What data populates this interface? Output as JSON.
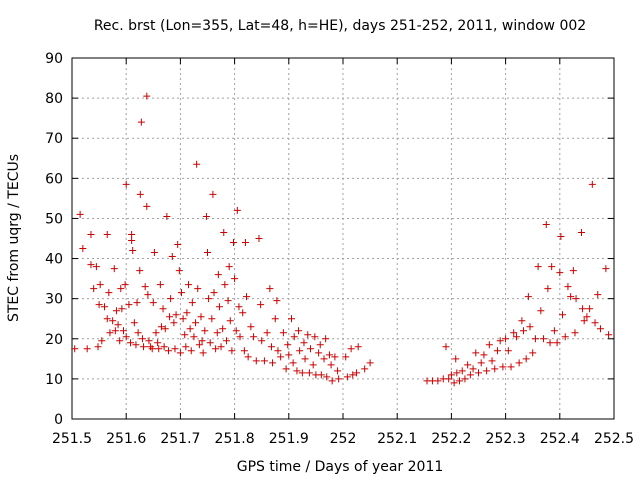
{
  "chart_data": {
    "type": "scatter",
    "title": "Rec. brst (Lon=355, Lat=48, h=HE), days 251-252, 2011, window 002",
    "xlabel": "GPS time / Days of year 2011",
    "ylabel": "STEC from uqrg / TECUs",
    "xlim": [
      251.5,
      252.5
    ],
    "ylim": [
      0,
      90
    ],
    "grid": true,
    "marker": "plus",
    "color": "#cc0000",
    "x_ticks": [
      251.5,
      251.6,
      251.7,
      251.8,
      251.9,
      252,
      252.1,
      252.2,
      252.3,
      252.4,
      252.5
    ],
    "x_tick_labels": [
      "251.5",
      "251.6",
      "251.7",
      "251.8",
      "251.9",
      "252",
      "252.1",
      "252.2",
      "252.3",
      "252.4",
      "252.5"
    ],
    "y_ticks": [
      0,
      10,
      20,
      30,
      40,
      50,
      60,
      70,
      80,
      90
    ],
    "y_tick_labels": [
      "0",
      "10",
      "20",
      "30",
      "40",
      "50",
      "60",
      "70",
      "80",
      "90"
    ],
    "series": [
      {
        "name": "STEC",
        "points": [
          [
            251.505,
            17.5
          ],
          [
            251.515,
            51.0
          ],
          [
            251.52,
            42.5
          ],
          [
            251.528,
            17.5
          ],
          [
            251.535,
            38.5
          ],
          [
            251.535,
            46.0
          ],
          [
            251.54,
            32.5
          ],
          [
            251.545,
            38.0
          ],
          [
            251.548,
            18.0
          ],
          [
            251.55,
            28.5
          ],
          [
            251.552,
            33.5
          ],
          [
            251.555,
            19.5
          ],
          [
            251.56,
            28.0
          ],
          [
            251.565,
            25.0
          ],
          [
            251.565,
            46.0
          ],
          [
            251.568,
            31.5
          ],
          [
            251.57,
            21.5
          ],
          [
            251.575,
            24.5
          ],
          [
            251.578,
            37.5
          ],
          [
            251.58,
            22.0
          ],
          [
            251.582,
            27.0
          ],
          [
            251.585,
            23.5
          ],
          [
            251.588,
            19.5
          ],
          [
            251.59,
            32.5
          ],
          [
            251.592,
            27.5
          ],
          [
            251.595,
            22.0
          ],
          [
            251.598,
            33.5
          ],
          [
            251.6,
            58.5
          ],
          [
            251.6,
            20.5
          ],
          [
            251.605,
            28.5
          ],
          [
            251.608,
            19.0
          ],
          [
            251.61,
            46.0
          ],
          [
            251.61,
            44.5
          ],
          [
            251.612,
            42.0
          ],
          [
            251.615,
            24.0
          ],
          [
            251.618,
            18.5
          ],
          [
            251.62,
            29.0
          ],
          [
            251.622,
            21.5
          ],
          [
            251.625,
            37.0
          ],
          [
            251.626,
            56.0
          ],
          [
            251.628,
            74.0
          ],
          [
            251.63,
            20.0
          ],
          [
            251.632,
            18.0
          ],
          [
            251.635,
            33.0
          ],
          [
            251.638,
            80.5
          ],
          [
            251.638,
            53.0
          ],
          [
            251.64,
            31.0
          ],
          [
            251.642,
            19.5
          ],
          [
            251.645,
            18.0
          ],
          [
            251.648,
            17.5
          ],
          [
            251.65,
            29.0
          ],
          [
            251.652,
            41.5
          ],
          [
            251.655,
            21.5
          ],
          [
            251.658,
            19.0
          ],
          [
            251.66,
            17.5
          ],
          [
            251.663,
            33.5
          ],
          [
            251.665,
            23.0
          ],
          [
            251.668,
            27.5
          ],
          [
            251.67,
            18.0
          ],
          [
            251.672,
            22.5
          ],
          [
            251.675,
            50.5
          ],
          [
            251.678,
            17.0
          ],
          [
            251.68,
            25.5
          ],
          [
            251.682,
            30.0
          ],
          [
            251.685,
            40.5
          ],
          [
            251.688,
            24.0
          ],
          [
            251.69,
            17.5
          ],
          [
            251.692,
            26.0
          ],
          [
            251.695,
            43.5
          ],
          [
            251.698,
            37.0
          ],
          [
            251.7,
            16.5
          ],
          [
            251.702,
            31.5
          ],
          [
            251.705,
            25.0
          ],
          [
            251.708,
            21.0
          ],
          [
            251.71,
            18.0
          ],
          [
            251.712,
            26.5
          ],
          [
            251.715,
            33.5
          ],
          [
            251.718,
            22.5
          ],
          [
            251.72,
            17.0
          ],
          [
            251.722,
            29.0
          ],
          [
            251.725,
            20.5
          ],
          [
            251.728,
            24.0
          ],
          [
            251.73,
            63.5
          ],
          [
            251.732,
            32.5
          ],
          [
            251.735,
            18.5
          ],
          [
            251.738,
            25.5
          ],
          [
            251.74,
            19.5
          ],
          [
            251.742,
            16.5
          ],
          [
            251.745,
            22.0
          ],
          [
            251.748,
            50.5
          ],
          [
            251.75,
            41.5
          ],
          [
            251.752,
            30.0
          ],
          [
            251.755,
            19.0
          ],
          [
            251.758,
            25.0
          ],
          [
            251.76,
            56.0
          ],
          [
            251.762,
            31.5
          ],
          [
            251.765,
            17.5
          ],
          [
            251.768,
            21.5
          ],
          [
            251.77,
            36.0
          ],
          [
            251.772,
            28.0
          ],
          [
            251.775,
            18.0
          ],
          [
            251.778,
            22.5
          ],
          [
            251.78,
            46.5
          ],
          [
            251.782,
            33.5
          ],
          [
            251.785,
            19.5
          ],
          [
            251.788,
            29.5
          ],
          [
            251.79,
            38.0
          ],
          [
            251.792,
            24.5
          ],
          [
            251.795,
            17.0
          ],
          [
            251.798,
            44.0
          ],
          [
            251.8,
            35.0
          ],
          [
            251.803,
            22.0
          ],
          [
            251.805,
            52.0
          ],
          [
            251.808,
            28.0
          ],
          [
            251.81,
            20.5
          ],
          [
            251.815,
            26.5
          ],
          [
            251.818,
            17.0
          ],
          [
            251.82,
            44.0
          ],
          [
            251.822,
            30.5
          ],
          [
            251.825,
            15.5
          ],
          [
            251.83,
            23.0
          ],
          [
            251.835,
            20.5
          ],
          [
            251.84,
            14.5
          ],
          [
            251.845,
            45.0
          ],
          [
            251.848,
            28.5
          ],
          [
            251.85,
            19.5
          ],
          [
            251.855,
            14.5
          ],
          [
            251.86,
            21.5
          ],
          [
            251.865,
            32.5
          ],
          [
            251.868,
            18.0
          ],
          [
            251.87,
            14.0
          ],
          [
            251.875,
            25.0
          ],
          [
            251.878,
            29.5
          ],
          [
            251.88,
            17.0
          ],
          [
            251.885,
            15.5
          ],
          [
            251.89,
            21.5
          ],
          [
            251.895,
            12.5
          ],
          [
            251.898,
            18.5
          ],
          [
            251.9,
            16.0
          ],
          [
            251.905,
            25.0
          ],
          [
            251.908,
            14.0
          ],
          [
            251.91,
            20.5
          ],
          [
            251.915,
            12.0
          ],
          [
            251.918,
            22.0
          ],
          [
            251.92,
            17.0
          ],
          [
            251.925,
            11.5
          ],
          [
            251.928,
            19.0
          ],
          [
            251.93,
            15.0
          ],
          [
            251.935,
            21.0
          ],
          [
            251.938,
            11.5
          ],
          [
            251.94,
            17.5
          ],
          [
            251.945,
            13.5
          ],
          [
            251.948,
            20.5
          ],
          [
            251.95,
            11.0
          ],
          [
            251.955,
            16.5
          ],
          [
            251.958,
            18.5
          ],
          [
            251.96,
            11.0
          ],
          [
            251.965,
            15.0
          ],
          [
            251.968,
            20.0
          ],
          [
            251.97,
            10.5
          ],
          [
            251.975,
            16.0
          ],
          [
            251.978,
            13.5
          ],
          [
            251.98,
            9.5
          ],
          [
            251.985,
            15.5
          ],
          [
            251.99,
            12.0
          ],
          [
            251.992,
            10.0
          ],
          [
            252.005,
            15.5
          ],
          [
            252.008,
            10.5
          ],
          [
            252.015,
            17.5
          ],
          [
            252.018,
            11.0
          ],
          [
            252.025,
            11.5
          ],
          [
            252.028,
            18.0
          ],
          [
            252.04,
            12.5
          ],
          [
            252.05,
            14.0
          ],
          [
            252.155,
            9.5
          ],
          [
            252.165,
            9.5
          ],
          [
            252.175,
            9.5
          ],
          [
            252.185,
            10.0
          ],
          [
            252.19,
            18.0
          ],
          [
            252.195,
            10.0
          ],
          [
            252.2,
            11.0
          ],
          [
            252.205,
            9.0
          ],
          [
            252.208,
            15.0
          ],
          [
            252.21,
            11.5
          ],
          [
            252.215,
            9.5
          ],
          [
            252.22,
            12.0
          ],
          [
            252.225,
            10.0
          ],
          [
            252.23,
            13.5
          ],
          [
            252.235,
            11.0
          ],
          [
            252.24,
            12.5
          ],
          [
            252.245,
            16.5
          ],
          [
            252.25,
            11.5
          ],
          [
            252.255,
            14.0
          ],
          [
            252.26,
            16.0
          ],
          [
            252.265,
            12.0
          ],
          [
            252.27,
            18.5
          ],
          [
            252.275,
            14.5
          ],
          [
            252.28,
            12.5
          ],
          [
            252.285,
            17.0
          ],
          [
            252.29,
            19.5
          ],
          [
            252.295,
            13.0
          ],
          [
            252.3,
            20.0
          ],
          [
            252.305,
            17.0
          ],
          [
            252.31,
            13.0
          ],
          [
            252.315,
            21.5
          ],
          [
            252.32,
            20.5
          ],
          [
            252.325,
            14.0
          ],
          [
            252.33,
            24.5
          ],
          [
            252.333,
            22.0
          ],
          [
            252.338,
            15.0
          ],
          [
            252.342,
            30.5
          ],
          [
            252.345,
            23.0
          ],
          [
            252.35,
            16.5
          ],
          [
            252.355,
            20.0
          ],
          [
            252.36,
            38.0
          ],
          [
            252.365,
            27.0
          ],
          [
            252.37,
            20.0
          ],
          [
            252.375,
            48.5
          ],
          [
            252.378,
            32.5
          ],
          [
            252.382,
            19.0
          ],
          [
            252.385,
            38.0
          ],
          [
            252.39,
            22.0
          ],
          [
            252.395,
            19.0
          ],
          [
            252.4,
            36.5
          ],
          [
            252.402,
            45.5
          ],
          [
            252.405,
            26.0
          ],
          [
            252.41,
            20.5
          ],
          [
            252.415,
            33.0
          ],
          [
            252.42,
            30.5
          ],
          [
            252.425,
            37.0
          ],
          [
            252.428,
            21.5
          ],
          [
            252.43,
            30.0
          ],
          [
            252.44,
            46.5
          ],
          [
            252.442,
            27.5
          ],
          [
            252.445,
            24.5
          ],
          [
            252.45,
            25.5
          ],
          [
            252.455,
            27.5
          ],
          [
            252.46,
            58.5
          ],
          [
            252.465,
            24.0
          ],
          [
            252.47,
            31.0
          ],
          [
            252.475,
            22.5
          ],
          [
            252.485,
            37.5
          ],
          [
            252.49,
            21.0
          ]
        ]
      }
    ]
  }
}
